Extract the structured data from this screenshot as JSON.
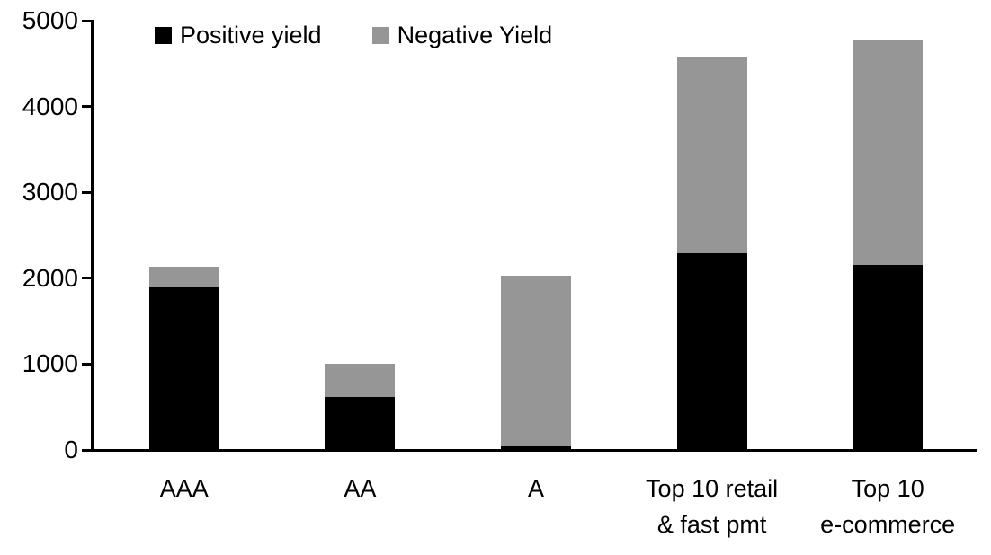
{
  "chart_data": {
    "type": "bar",
    "stacked": true,
    "title": "",
    "xlabel": "",
    "ylabel": "",
    "categories": [
      "AAA",
      "AA",
      "A",
      "Top 10 retail\n& fast pmt",
      "Top 10\ne-commerce"
    ],
    "series": [
      {
        "name": "Positive yield",
        "color": "#000000",
        "values": [
          1890,
          620,
          40,
          2290,
          2150
        ]
      },
      {
        "name": "Negative Yield",
        "color": "#969696",
        "values": [
          240,
          380,
          1990,
          2290,
          2620
        ]
      }
    ],
    "totals": [
      2130,
      1000,
      2030,
      4580,
      4770
    ],
    "ylim": [
      0,
      5000
    ],
    "yticks": [
      0,
      1000,
      2000,
      3000,
      4000,
      5000
    ],
    "legend_position": "top",
    "grid": false,
    "colors": {
      "axis": "#000000",
      "text": "#000000",
      "background": "#ffffff"
    }
  }
}
